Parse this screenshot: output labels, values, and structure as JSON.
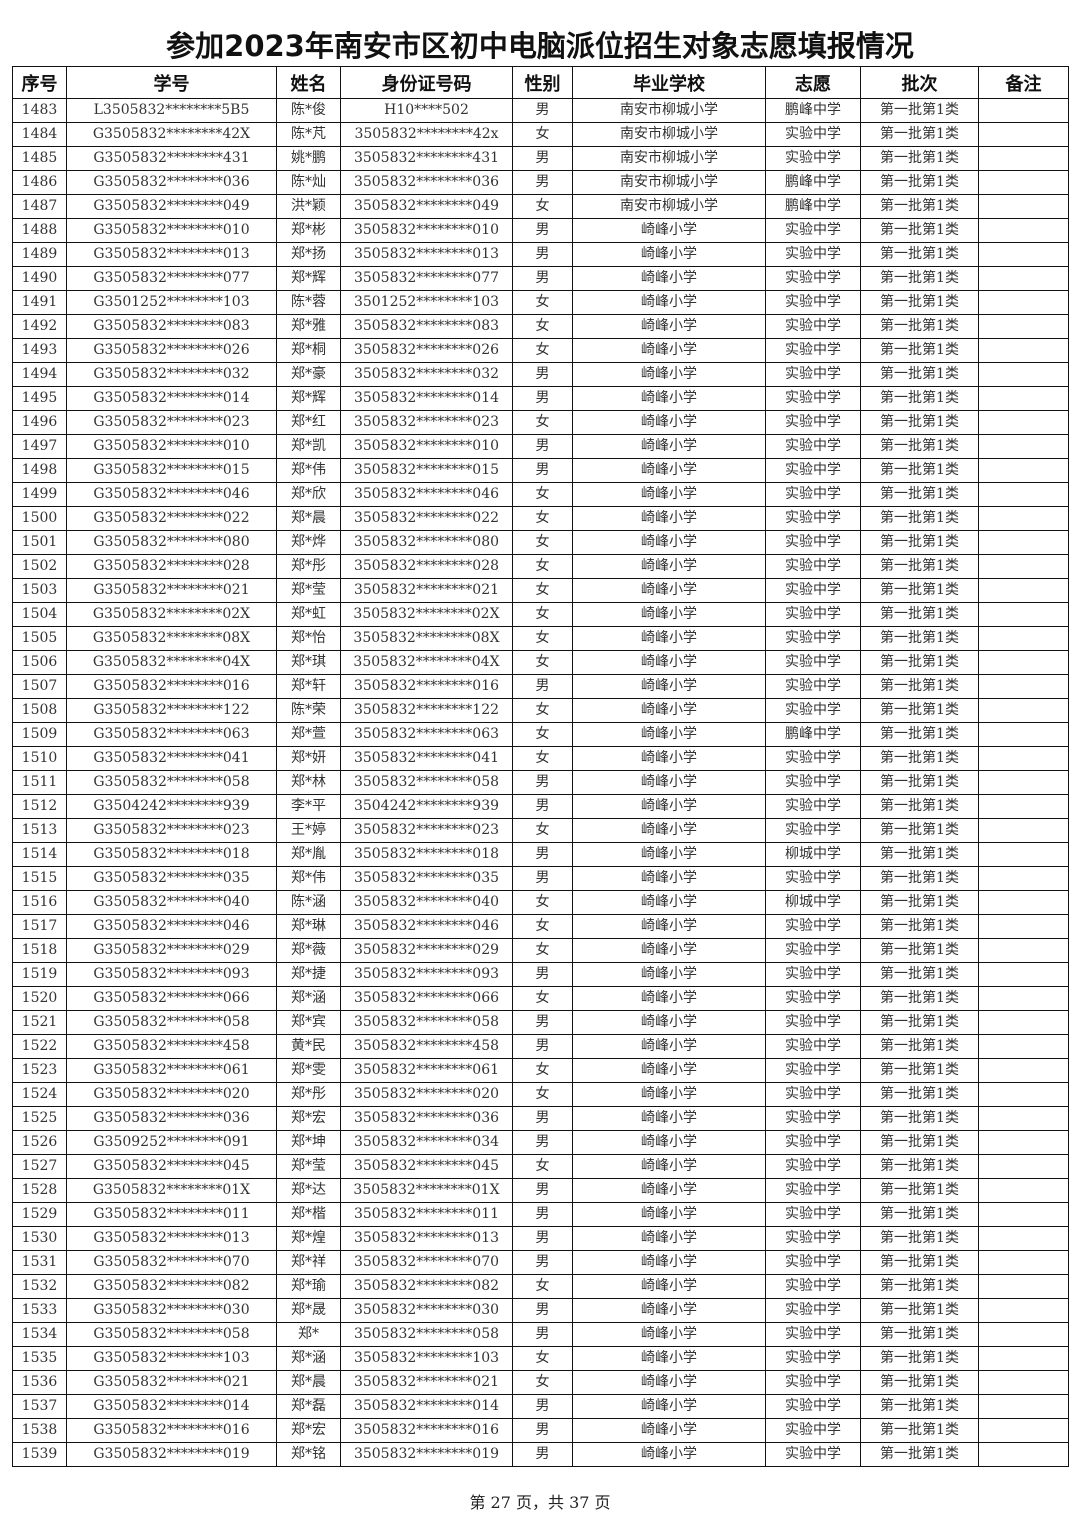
{
  "title": "参加2023年南安市区初中电脑派位招生对象志愿填报情况",
  "columns": [
    "序号",
    "学号",
    "姓名",
    "身份证号码",
    "性别",
    "毕业学校",
    "志愿",
    "批次",
    "备注"
  ],
  "rows": [
    [
      "1483",
      "L3505832********5B5",
      "陈*俊",
      "H10****502",
      "男",
      "南安市柳城小学",
      "鹏峰中学",
      "第一批第1类",
      ""
    ],
    [
      "1484",
      "G3505832********42X",
      "陈*芃",
      "3505832********42x",
      "女",
      "南安市柳城小学",
      "实验中学",
      "第一批第1类",
      ""
    ],
    [
      "1485",
      "G3505832********431",
      "姚*鹏",
      "3505832********431",
      "男",
      "南安市柳城小学",
      "实验中学",
      "第一批第1类",
      ""
    ],
    [
      "1486",
      "G3505832********036",
      "陈*灿",
      "3505832********036",
      "男",
      "南安市柳城小学",
      "鹏峰中学",
      "第一批第1类",
      ""
    ],
    [
      "1487",
      "G3505832********049",
      "洪*颖",
      "3505832********049",
      "女",
      "南安市柳城小学",
      "鹏峰中学",
      "第一批第1类",
      ""
    ],
    [
      "1488",
      "G3505832********010",
      "郑*彬",
      "3505832********010",
      "男",
      "崎峰小学",
      "实验中学",
      "第一批第1类",
      ""
    ],
    [
      "1489",
      "G3505832********013",
      "郑*扬",
      "3505832********013",
      "男",
      "崎峰小学",
      "实验中学",
      "第一批第1类",
      ""
    ],
    [
      "1490",
      "G3505832********077",
      "郑*辉",
      "3505832********077",
      "男",
      "崎峰小学",
      "实验中学",
      "第一批第1类",
      ""
    ],
    [
      "1491",
      "G3501252********103",
      "陈*蓉",
      "3501252********103",
      "女",
      "崎峰小学",
      "实验中学",
      "第一批第1类",
      ""
    ],
    [
      "1492",
      "G3505832********083",
      "郑*雅",
      "3505832********083",
      "女",
      "崎峰小学",
      "实验中学",
      "第一批第1类",
      ""
    ],
    [
      "1493",
      "G3505832********026",
      "郑*桐",
      "3505832********026",
      "女",
      "崎峰小学",
      "实验中学",
      "第一批第1类",
      ""
    ],
    [
      "1494",
      "G3505832********032",
      "郑*豪",
      "3505832********032",
      "男",
      "崎峰小学",
      "实验中学",
      "第一批第1类",
      ""
    ],
    [
      "1495",
      "G3505832********014",
      "郑*辉",
      "3505832********014",
      "男",
      "崎峰小学",
      "实验中学",
      "第一批第1类",
      ""
    ],
    [
      "1496",
      "G3505832********023",
      "郑*红",
      "3505832********023",
      "女",
      "崎峰小学",
      "实验中学",
      "第一批第1类",
      ""
    ],
    [
      "1497",
      "G3505832********010",
      "郑*凯",
      "3505832********010",
      "男",
      "崎峰小学",
      "实验中学",
      "第一批第1类",
      ""
    ],
    [
      "1498",
      "G3505832********015",
      "郑*伟",
      "3505832********015",
      "男",
      "崎峰小学",
      "实验中学",
      "第一批第1类",
      ""
    ],
    [
      "1499",
      "G3505832********046",
      "郑*欣",
      "3505832********046",
      "女",
      "崎峰小学",
      "实验中学",
      "第一批第1类",
      ""
    ],
    [
      "1500",
      "G3505832********022",
      "郑*晨",
      "3505832********022",
      "女",
      "崎峰小学",
      "实验中学",
      "第一批第1类",
      ""
    ],
    [
      "1501",
      "G3505832********080",
      "郑*烨",
      "3505832********080",
      "女",
      "崎峰小学",
      "实验中学",
      "第一批第1类",
      ""
    ],
    [
      "1502",
      "G3505832********028",
      "郑*彤",
      "3505832********028",
      "女",
      "崎峰小学",
      "实验中学",
      "第一批第1类",
      ""
    ],
    [
      "1503",
      "G3505832********021",
      "郑*莹",
      "3505832********021",
      "女",
      "崎峰小学",
      "实验中学",
      "第一批第1类",
      ""
    ],
    [
      "1504",
      "G3505832********02X",
      "郑*虹",
      "3505832********02X",
      "女",
      "崎峰小学",
      "实验中学",
      "第一批第1类",
      ""
    ],
    [
      "1505",
      "G3505832********08X",
      "郑*怡",
      "3505832********08X",
      "女",
      "崎峰小学",
      "实验中学",
      "第一批第1类",
      ""
    ],
    [
      "1506",
      "G3505832********04X",
      "郑*琪",
      "3505832********04X",
      "女",
      "崎峰小学",
      "实验中学",
      "第一批第1类",
      ""
    ],
    [
      "1507",
      "G3505832********016",
      "郑*轩",
      "3505832********016",
      "男",
      "崎峰小学",
      "实验中学",
      "第一批第1类",
      ""
    ],
    [
      "1508",
      "G3505832********122",
      "陈*荣",
      "3505832********122",
      "女",
      "崎峰小学",
      "实验中学",
      "第一批第1类",
      ""
    ],
    [
      "1509",
      "G3505832********063",
      "郑*萱",
      "3505832********063",
      "女",
      "崎峰小学",
      "鹏峰中学",
      "第一批第1类",
      ""
    ],
    [
      "1510",
      "G3505832********041",
      "郑*妍",
      "3505832********041",
      "女",
      "崎峰小学",
      "实验中学",
      "第一批第1类",
      ""
    ],
    [
      "1511",
      "G3505832********058",
      "郑*林",
      "3505832********058",
      "男",
      "崎峰小学",
      "实验中学",
      "第一批第1类",
      ""
    ],
    [
      "1512",
      "G3504242********939",
      "李*平",
      "3504242********939",
      "男",
      "崎峰小学",
      "实验中学",
      "第一批第1类",
      ""
    ],
    [
      "1513",
      "G3505832********023",
      "王*婷",
      "3505832********023",
      "女",
      "崎峰小学",
      "实验中学",
      "第一批第1类",
      ""
    ],
    [
      "1514",
      "G3505832********018",
      "郑*胤",
      "3505832********018",
      "男",
      "崎峰小学",
      "柳城中学",
      "第一批第1类",
      ""
    ],
    [
      "1515",
      "G3505832********035",
      "郑*伟",
      "3505832********035",
      "男",
      "崎峰小学",
      "实验中学",
      "第一批第1类",
      ""
    ],
    [
      "1516",
      "G3505832********040",
      "陈*涵",
      "3505832********040",
      "女",
      "崎峰小学",
      "柳城中学",
      "第一批第1类",
      ""
    ],
    [
      "1517",
      "G3505832********046",
      "郑*琳",
      "3505832********046",
      "女",
      "崎峰小学",
      "实验中学",
      "第一批第1类",
      ""
    ],
    [
      "1518",
      "G3505832********029",
      "郑*薇",
      "3505832********029",
      "女",
      "崎峰小学",
      "实验中学",
      "第一批第1类",
      ""
    ],
    [
      "1519",
      "G3505832********093",
      "郑*捷",
      "3505832********093",
      "男",
      "崎峰小学",
      "实验中学",
      "第一批第1类",
      ""
    ],
    [
      "1520",
      "G3505832********066",
      "郑*涵",
      "3505832********066",
      "女",
      "崎峰小学",
      "实验中学",
      "第一批第1类",
      ""
    ],
    [
      "1521",
      "G3505832********058",
      "郑*宾",
      "3505832********058",
      "男",
      "崎峰小学",
      "实验中学",
      "第一批第1类",
      ""
    ],
    [
      "1522",
      "G3505832********458",
      "黄*民",
      "3505832********458",
      "男",
      "崎峰小学",
      "实验中学",
      "第一批第1类",
      ""
    ],
    [
      "1523",
      "G3505832********061",
      "郑*雯",
      "3505832********061",
      "女",
      "崎峰小学",
      "实验中学",
      "第一批第1类",
      ""
    ],
    [
      "1524",
      "G3505832********020",
      "郑*彤",
      "3505832********020",
      "女",
      "崎峰小学",
      "实验中学",
      "第一批第1类",
      ""
    ],
    [
      "1525",
      "G3505832********036",
      "郑*宏",
      "3505832********036",
      "男",
      "崎峰小学",
      "实验中学",
      "第一批第1类",
      ""
    ],
    [
      "1526",
      "G3509252********091",
      "郑*坤",
      "3505832********034",
      "男",
      "崎峰小学",
      "实验中学",
      "第一批第1类",
      ""
    ],
    [
      "1527",
      "G3505832********045",
      "郑*莹",
      "3505832********045",
      "女",
      "崎峰小学",
      "实验中学",
      "第一批第1类",
      ""
    ],
    [
      "1528",
      "G3505832********01X",
      "郑*达",
      "3505832********01X",
      "男",
      "崎峰小学",
      "实验中学",
      "第一批第1类",
      ""
    ],
    [
      "1529",
      "G3505832********011",
      "郑*楷",
      "3505832********011",
      "男",
      "崎峰小学",
      "实验中学",
      "第一批第1类",
      ""
    ],
    [
      "1530",
      "G3505832********013",
      "郑*煌",
      "3505832********013",
      "男",
      "崎峰小学",
      "实验中学",
      "第一批第1类",
      ""
    ],
    [
      "1531",
      "G3505832********070",
      "郑*祥",
      "3505832********070",
      "男",
      "崎峰小学",
      "实验中学",
      "第一批第1类",
      ""
    ],
    [
      "1532",
      "G3505832********082",
      "郑*瑜",
      "3505832********082",
      "女",
      "崎峰小学",
      "实验中学",
      "第一批第1类",
      ""
    ],
    [
      "1533",
      "G3505832********030",
      "郑*晟",
      "3505832********030",
      "男",
      "崎峰小学",
      "实验中学",
      "第一批第1类",
      ""
    ],
    [
      "1534",
      "G3505832********058",
      "郑*",
      "3505832********058",
      "男",
      "崎峰小学",
      "实验中学",
      "第一批第1类",
      ""
    ],
    [
      "1535",
      "G3505832********103",
      "郑*涵",
      "3505832********103",
      "女",
      "崎峰小学",
      "实验中学",
      "第一批第1类",
      ""
    ],
    [
      "1536",
      "G3505832********021",
      "郑*晨",
      "3505832********021",
      "女",
      "崎峰小学",
      "实验中学",
      "第一批第1类",
      ""
    ],
    [
      "1537",
      "G3505832********014",
      "郑*磊",
      "3505832********014",
      "男",
      "崎峰小学",
      "实验中学",
      "第一批第1类",
      ""
    ],
    [
      "1538",
      "G3505832********016",
      "郑*宏",
      "3505832********016",
      "男",
      "崎峰小学",
      "实验中学",
      "第一批第1类",
      ""
    ],
    [
      "1539",
      "G3505832********019",
      "郑*铭",
      "3505832********019",
      "男",
      "崎峰小学",
      "实验中学",
      "第一批第1类",
      ""
    ]
  ],
  "footer": "第 27 页，共 37 页"
}
